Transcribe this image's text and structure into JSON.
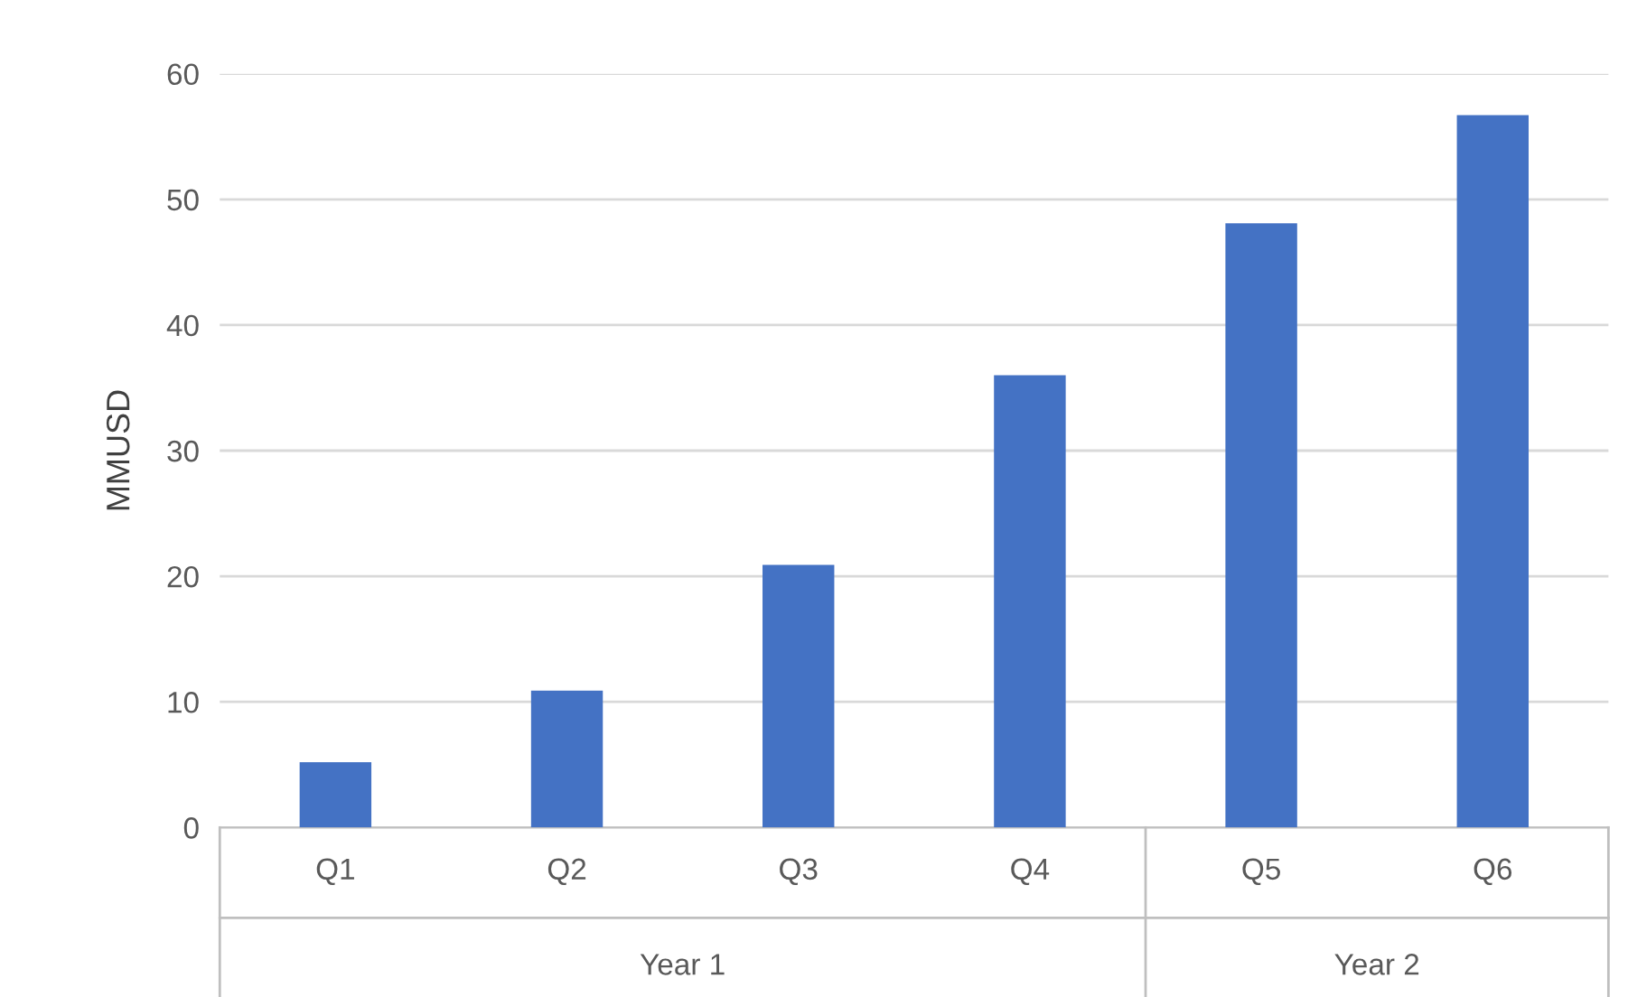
{
  "chart_data": {
    "type": "bar",
    "ylabel": "MMUSD",
    "categories": [
      "Q1",
      "Q2",
      "Q3",
      "Q4",
      "Q5",
      "Q6"
    ],
    "values": [
      5.2,
      10.9,
      20.9,
      36.0,
      48.1,
      56.7
    ],
    "color": "#4472c4",
    "ylim": [
      0,
      60
    ],
    "yticks": [
      0,
      10,
      20,
      30,
      40,
      50,
      60
    ],
    "grid": "y",
    "annotations": [
      "Year 1",
      "Year 2"
    ]
  }
}
